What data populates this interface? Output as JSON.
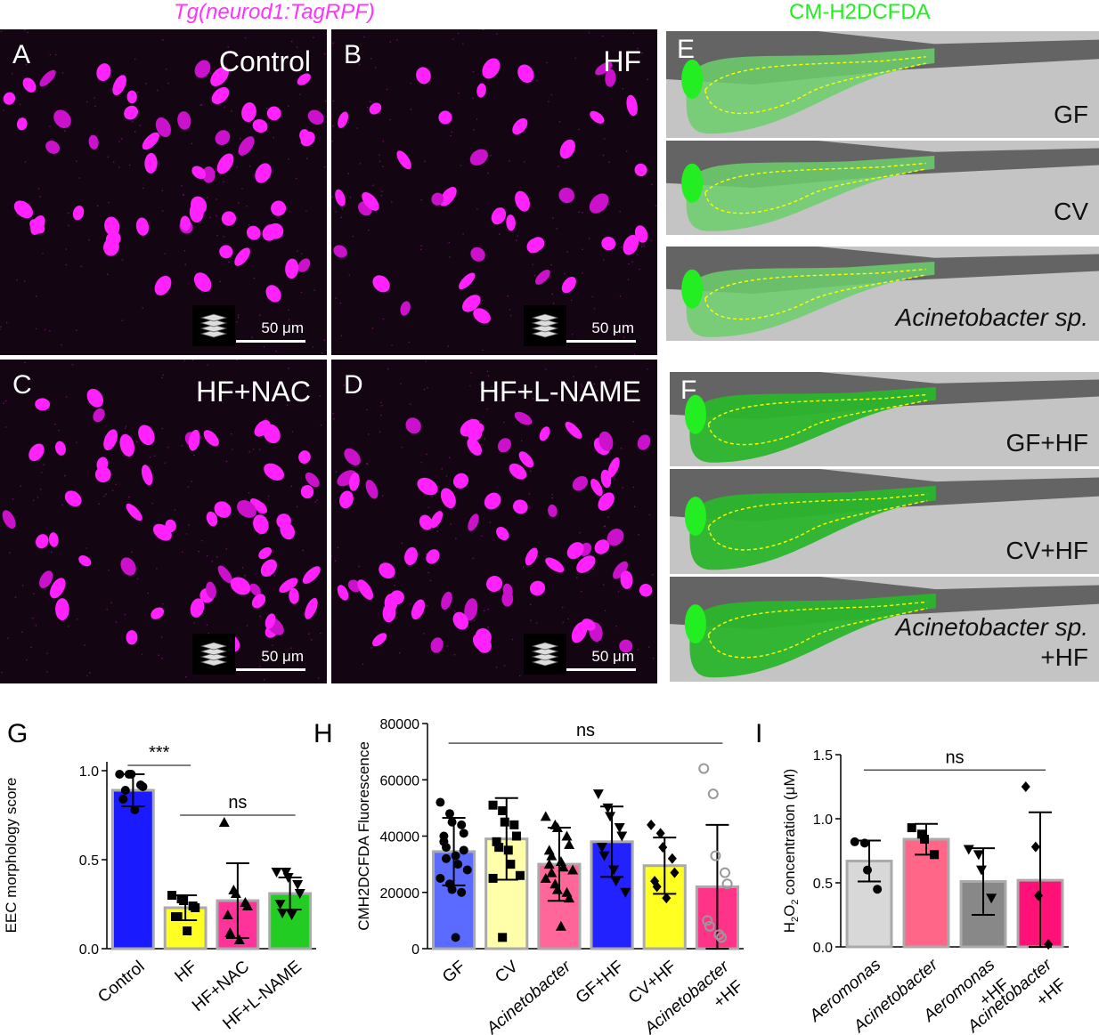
{
  "headers": {
    "left": "Tg(neurod1:TagRPF)",
    "right": "CM-H2DCFDA"
  },
  "micro_panels": [
    {
      "letter": "A",
      "title": "Control",
      "scale": "50 μm"
    },
    {
      "letter": "B",
      "title": "HF",
      "scale": "50 μm"
    },
    {
      "letter": "C",
      "title": "HF+NAC",
      "scale": "50 μm"
    },
    {
      "letter": "D",
      "title": "HF+L-NAME",
      "scale": "50 μm"
    }
  ],
  "gut_panels": {
    "E": {
      "letter": "E",
      "rows": [
        "GF",
        "CV",
        "Acinetobacter sp."
      ]
    },
    "F": {
      "letter": "F",
      "rows": [
        "GF+HF",
        "CV+HF",
        "Acinetobacter sp.",
        "+HF"
      ]
    }
  },
  "colors": {
    "magenta": "#ff33ff",
    "green": "#22ee22",
    "dash": "#ffff00"
  },
  "chart_data": [
    {
      "letter": "G",
      "type": "bar",
      "ylabel": "EEC morphology score",
      "yticks": [
        "0.0",
        "0.5",
        "1.0"
      ],
      "ylim": [
        0,
        1.05
      ],
      "categories": [
        "Control",
        "HF",
        "HF+NAC",
        "HF+L-NAME"
      ],
      "values": [
        0.89,
        0.23,
        0.27,
        0.31
      ],
      "errors": [
        0.09,
        0.07,
        0.21,
        0.09
      ],
      "bar_colors": [
        "#1a1aff",
        "#ffff22",
        "#ff3399",
        "#22cc22"
      ],
      "marker": [
        "circle",
        "square",
        "triangle",
        "triangle-down"
      ],
      "points": [
        [
          0.98,
          0.98,
          0.98,
          0.92,
          0.91,
          0.84,
          0.89,
          0.78
        ],
        [
          0.3,
          0.28,
          0.27,
          0.24,
          0.23,
          0.18,
          0.18,
          0.1
        ],
        [
          0.71,
          0.33,
          0.31,
          0.26,
          0.24,
          0.19,
          0.09,
          0.05
        ],
        [
          0.43,
          0.43,
          0.4,
          0.36,
          0.31,
          0.25,
          0.2,
          0.19
        ]
      ],
      "annotations": [
        {
          "text": "***",
          "from": 0,
          "to": 1,
          "y": 1.03
        },
        {
          "text": "ns",
          "from": 1,
          "to": 3,
          "y": 0.75
        }
      ]
    },
    {
      "letter": "H",
      "type": "bar",
      "ylabel": "CMH2DCFDA Fluorescence",
      "yticks": [
        "0",
        "20000",
        "40000",
        "60000",
        "80000"
      ],
      "ylim": [
        0,
        80000
      ],
      "categories": [
        "GF",
        "CV",
        "Acinetobacter",
        "GF+HF",
        "CV+HF",
        "Acinetobacter +HF"
      ],
      "values": [
        34500,
        39000,
        30000,
        38000,
        29500,
        22000
      ],
      "errors": [
        12000,
        14500,
        13000,
        12500,
        10000,
        22000
      ],
      "bar_colors": [
        "#5b6bff",
        "#ffffaa",
        "#ff6699",
        "#2222ff",
        "#ffff22",
        "#ff3388"
      ],
      "marker": [
        "circle",
        "square",
        "triangle",
        "triangle-down",
        "diamond",
        "open-circle"
      ],
      "points": [
        [
          52000,
          48000,
          45000,
          44000,
          41000,
          38000,
          36000,
          33000,
          30000,
          28000,
          25000,
          23000,
          21000,
          20000,
          35000,
          40000,
          32000,
          4000
        ],
        [
          51000,
          49000,
          45000,
          44000,
          40000,
          38000,
          36000,
          35000,
          30000,
          26000,
          25000,
          4000
        ],
        [
          47000,
          44000,
          43000,
          40000,
          37000,
          35000,
          33000,
          31000,
          29000,
          28000,
          25000,
          23000,
          21000,
          20000,
          18000,
          30000,
          27000,
          8000
        ],
        [
          55000,
          50000,
          47000,
          43000,
          40000,
          36000,
          33000,
          28000,
          24000,
          20000
        ],
        [
          44000,
          41000,
          36000,
          32000,
          27000,
          24000,
          22000,
          18000
        ],
        [
          64000,
          55000,
          33000,
          27000,
          23000,
          10000,
          8000,
          5000,
          4000
        ]
      ],
      "annotations": [
        {
          "text": "ns",
          "from": 0,
          "to": 5,
          "y": 73000
        }
      ]
    },
    {
      "letter": "I",
      "type": "bar",
      "ylabel": "H2O2 concentration (μM)",
      "yticks": [
        "0.0",
        "0.5",
        "1.0",
        "1.5"
      ],
      "ylim": [
        0,
        1.5
      ],
      "categories": [
        "Aeromonas",
        "Acinetobacter",
        "Aeromonas +HF",
        "Acinetobacter +HF"
      ],
      "values": [
        0.67,
        0.84,
        0.51,
        0.52
      ],
      "errors": [
        0.16,
        0.12,
        0.26,
        0.53
      ],
      "bar_colors": [
        "#d8d8d8",
        "#ff6688",
        "#888888",
        "#ff1177"
      ],
      "marker": [
        "circle",
        "square",
        "triangle-down",
        "diamond"
      ],
      "points": [
        [
          0.82,
          0.81,
          0.6,
          0.45
        ],
        [
          0.93,
          0.88,
          0.84,
          0.72
        ],
        [
          0.76,
          0.72,
          0.6,
          0.38
        ],
        [
          1.25,
          0.78,
          0.4,
          0.02
        ]
      ],
      "annotations": [
        {
          "text": "ns",
          "from": 0,
          "to": 3,
          "y": 1.38
        }
      ]
    }
  ]
}
